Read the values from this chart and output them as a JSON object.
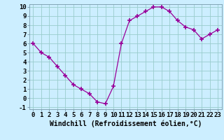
{
  "x": [
    0,
    1,
    2,
    3,
    4,
    5,
    6,
    7,
    8,
    9,
    10,
    11,
    12,
    13,
    14,
    15,
    16,
    17,
    18,
    19,
    20,
    21,
    22,
    23
  ],
  "y": [
    6,
    5,
    4.5,
    3.5,
    2.5,
    1.5,
    1.0,
    0.5,
    -0.4,
    -0.6,
    1.3,
    6,
    8.5,
    9,
    9.5,
    10,
    10,
    9.5,
    8.5,
    7.8,
    7.5,
    6.5,
    7,
    7.5
  ],
  "line_color": "#990099",
  "marker": "+",
  "marker_size": 4,
  "bg_color": "#cceeff",
  "grid_color": "#99cccc",
  "xlabel": "Windchill (Refroidissement éolien,°C)",
  "xlabel_fontsize": 7,
  "tick_fontsize": 6.5,
  "ylim": [
    -1.2,
    10.3
  ],
  "yticks": [
    -1,
    0,
    1,
    2,
    3,
    4,
    5,
    6,
    7,
    8,
    9,
    10
  ],
  "xticks": [
    0,
    1,
    2,
    3,
    4,
    5,
    6,
    7,
    8,
    9,
    10,
    11,
    12,
    13,
    14,
    15,
    16,
    17,
    18,
    19,
    20,
    21,
    22,
    23
  ]
}
